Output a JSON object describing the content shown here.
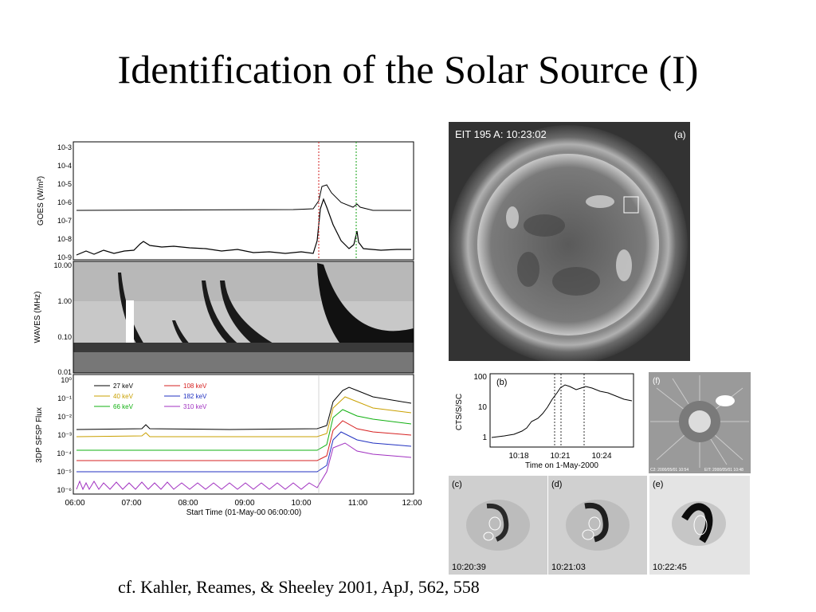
{
  "slide": {
    "title": "Identification of the Solar Source (I)",
    "citation": "cf. Kahler, Reames, & Sheeley 2001, ApJ, 562, 558"
  },
  "left_figure": {
    "goes": {
      "ylabel": "GOES (W/m²)",
      "ticks": [
        "10-3",
        "10-4",
        "10-5",
        "10-6",
        "10-7",
        "10-8",
        "10-9"
      ]
    },
    "waves": {
      "ylabel": "WAVES (MHz)",
      "ticks": [
        "10.00",
        "1.00",
        "0.10",
        "0.01"
      ]
    },
    "sfsp": {
      "ylabel": "3DP SFSP Flux",
      "ticks": [
        "10⁰",
        "10⁻¹",
        "10⁻²",
        "10⁻³",
        "10⁻⁴",
        "10⁻⁵",
        "10⁻⁶"
      ],
      "legend": [
        {
          "label": "27 keV",
          "color": "#000000"
        },
        {
          "label": "108 keV",
          "color": "#d62020"
        },
        {
          "label": "40 keV",
          "color": "#c9a000"
        },
        {
          "label": "182 keV",
          "color": "#2030c0"
        },
        {
          "label": "66 keV",
          "color": "#10b010"
        },
        {
          "label": "310 keV",
          "color": "#a030c0"
        }
      ]
    },
    "x_ticks": [
      "06:00",
      "07:00",
      "08:00",
      "09:00",
      "10:00",
      "11:00",
      "12:00"
    ],
    "xlabel": "Start Time (01-May-00 06:00:00)"
  },
  "panel_a": {
    "title": "EIT 195 A: 10:23:02",
    "letter": "(a)"
  },
  "panel_b": {
    "letter": "(b)",
    "ylabel": "CTS/S/SC",
    "yticks": [
      "100",
      "10",
      "1"
    ],
    "xticks": [
      "10:18",
      "10:21",
      "10:24"
    ],
    "xlabel": "Time on 1-May-2000"
  },
  "panel_f": {
    "letter": "(f)",
    "caption_left": "C2: 2000/05/01 10:54",
    "caption_right": "EIT: 2000/05/01 10:48"
  },
  "panel_c": {
    "letter": "(c)",
    "time": "10:20:39"
  },
  "panel_d": {
    "letter": "(d)",
    "time": "10:21:03"
  },
  "panel_e": {
    "letter": "(e)",
    "time": "10:22:45"
  }
}
